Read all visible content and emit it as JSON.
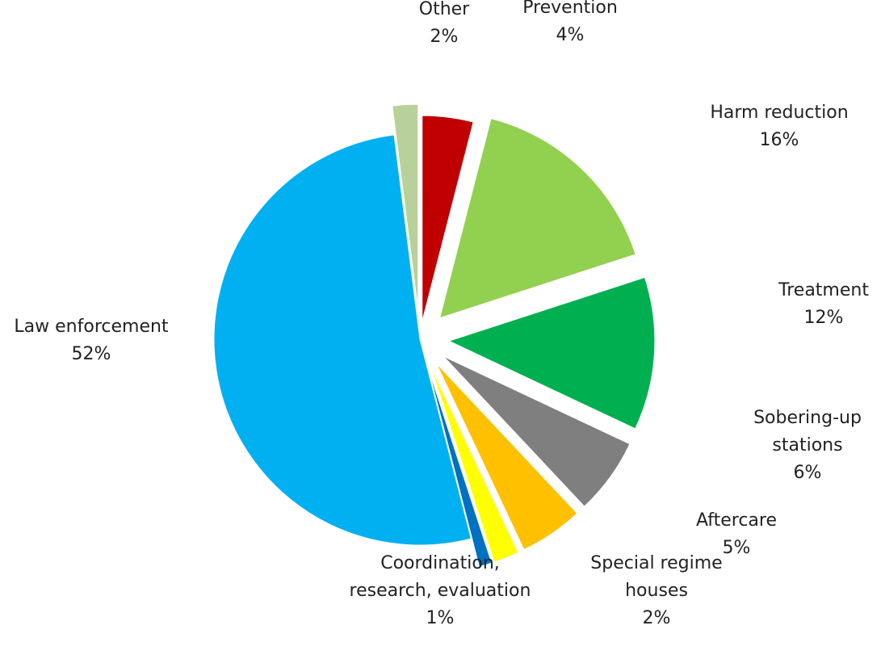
{
  "chart_data": {
    "type": "pie",
    "title": "",
    "start_angle_deg": 0,
    "direction": "clockwise",
    "slices": [
      {
        "label_lines": [
          "Prevention",
          "4%"
        ],
        "value": 4,
        "color": "#C00000"
      },
      {
        "label_lines": [
          "Harm reduction",
          "16%"
        ],
        "value": 16,
        "color": "#92D050"
      },
      {
        "label_lines": [
          "Treatment",
          "12%"
        ],
        "value": 12,
        "color": "#00B050"
      },
      {
        "label_lines": [
          "Sobering-up",
          "stations",
          "6%"
        ],
        "value": 6,
        "color": "#7F7F7F"
      },
      {
        "label_lines": [
          "Aftercare",
          "5%"
        ],
        "value": 5,
        "color": "#FFC000"
      },
      {
        "label_lines": [
          "Special regime",
          "houses",
          "2%"
        ],
        "value": 2,
        "color": "#FFFF00"
      },
      {
        "label_lines": [
          "Coordination,",
          "research, evaluation",
          "1%"
        ],
        "value": 1,
        "color": "#0070C0"
      },
      {
        "label_lines": [
          "Law enforcement",
          "52%"
        ],
        "value": 52,
        "color": "#00B0F0"
      },
      {
        "label_lines": [
          "Other",
          "2%"
        ],
        "value": 2,
        "color": "#B8D19A"
      }
    ]
  }
}
